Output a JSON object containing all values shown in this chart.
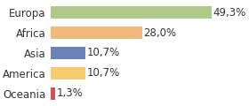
{
  "categories": [
    "Oceania",
    "America",
    "Asia",
    "Africa",
    "Europa"
  ],
  "values": [
    1.3,
    10.7,
    10.7,
    28.0,
    49.3
  ],
  "bar_colors": [
    "#d94f4f",
    "#f5cc6f",
    "#6b82b8",
    "#f0b97c",
    "#aec98a"
  ],
  "labels": [
    "1,3%",
    "10,7%",
    "10,7%",
    "28,0%",
    "49,3%"
  ],
  "background_color": "#ffffff",
  "xlim": [
    0,
    60
  ],
  "label_fontsize": 8.5,
  "tick_fontsize": 8.5
}
